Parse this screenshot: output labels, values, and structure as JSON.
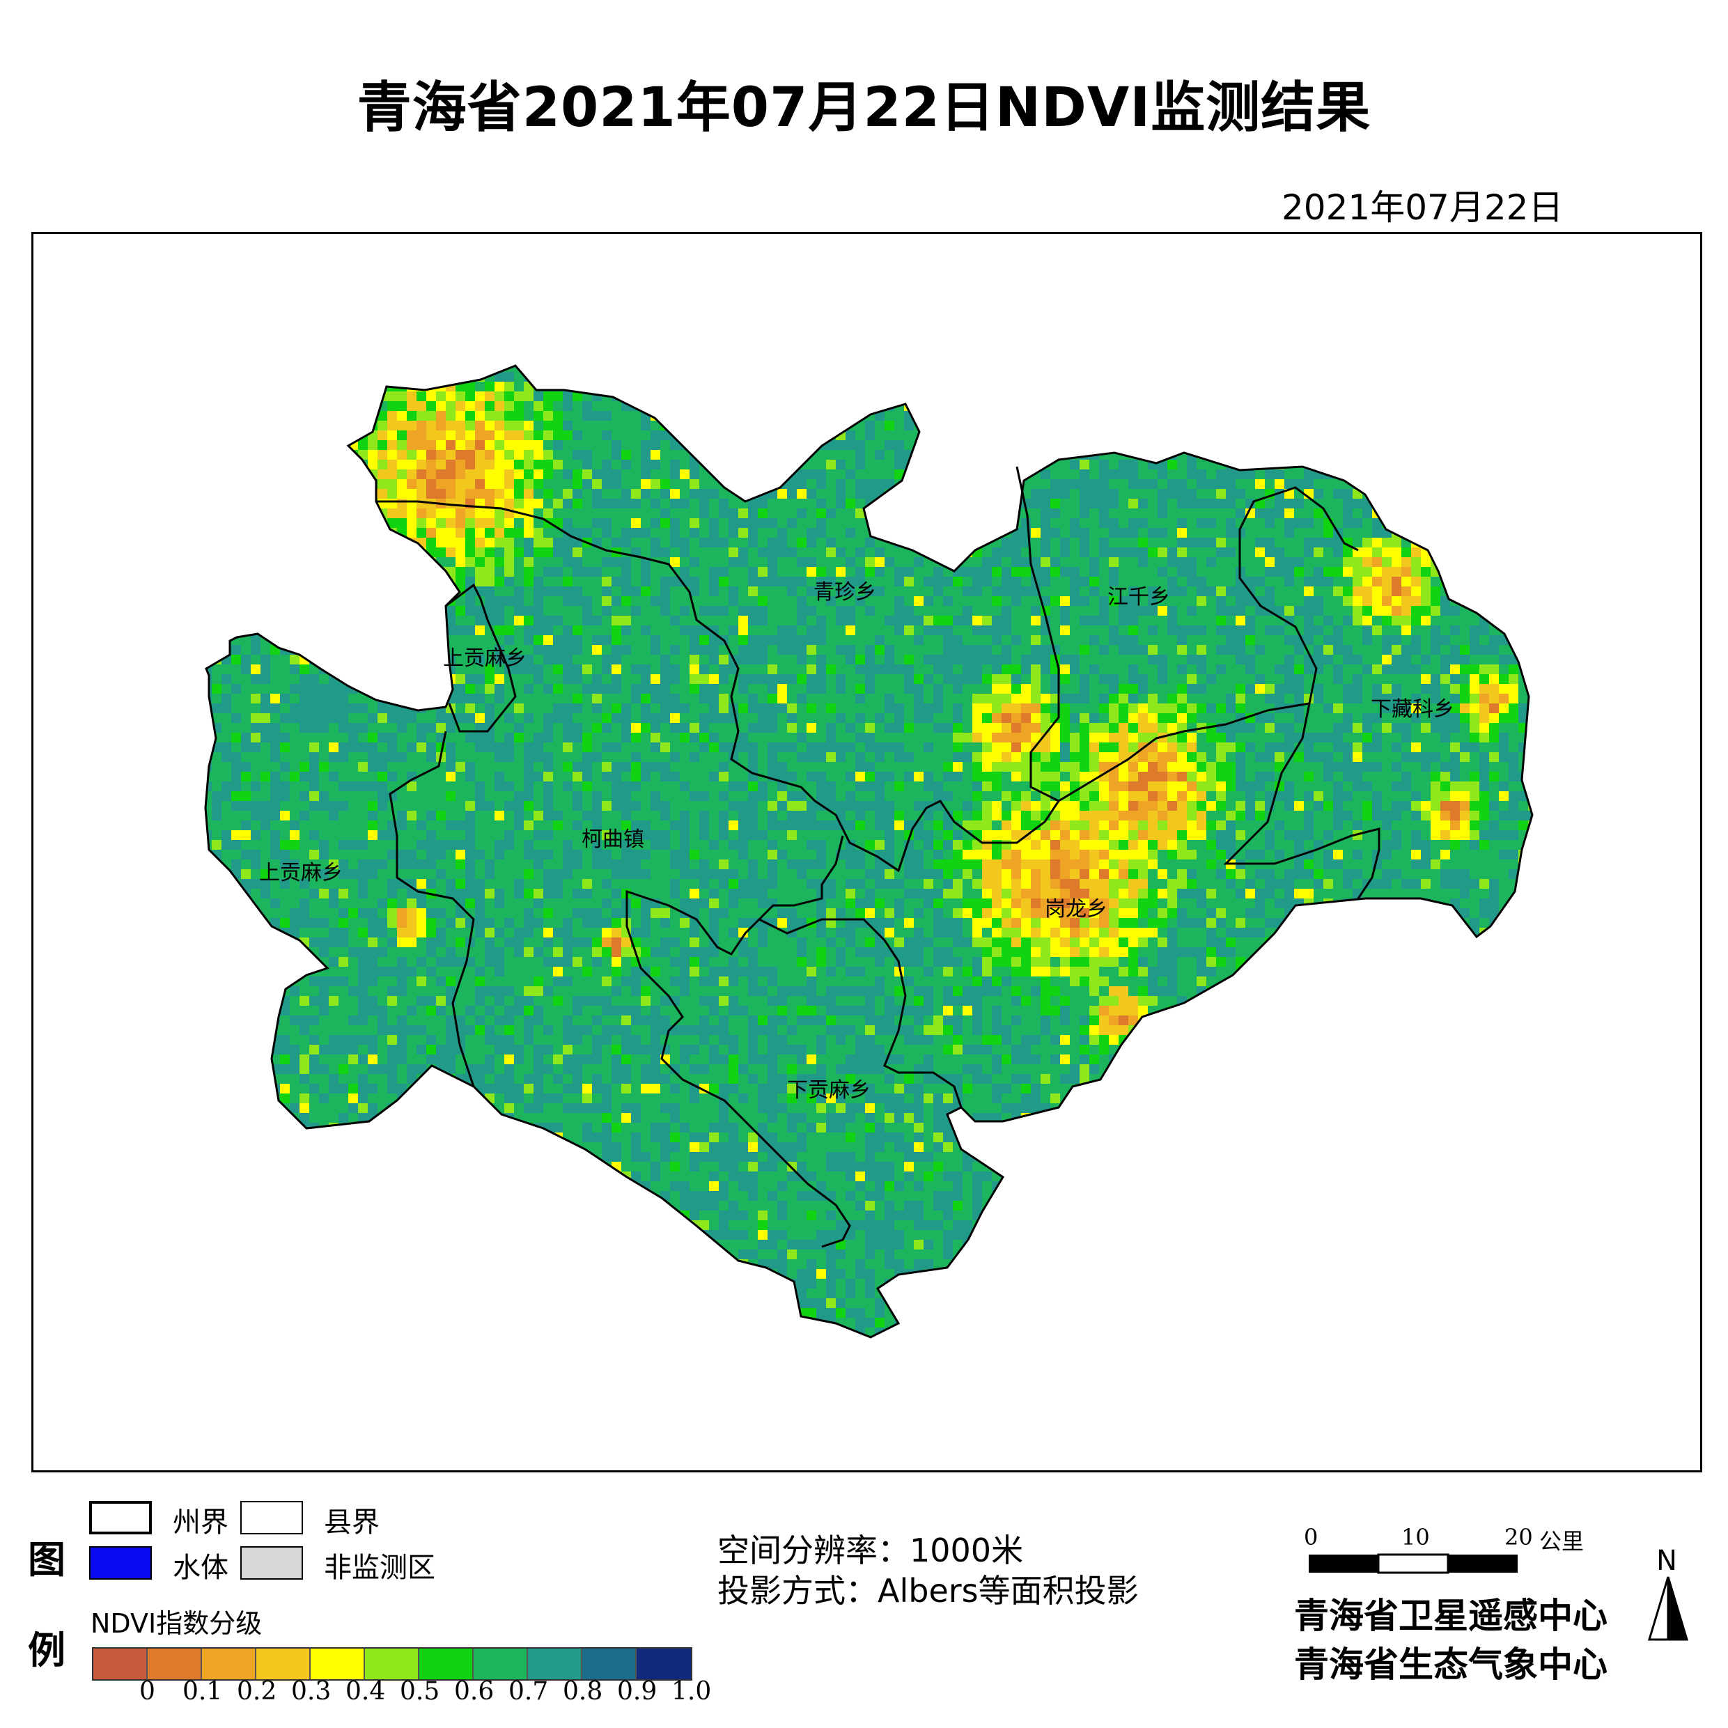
{
  "header": {
    "title": "青海省2021年07月22日NDVI监测结果",
    "date": "2021年07月22日"
  },
  "map": {
    "township_labels": [
      {
        "id": "qingzhen",
        "name": "青珍乡"
      },
      {
        "id": "jiangqian",
        "name": "江千乡"
      },
      {
        "id": "shanggongma-n",
        "name": "上贡麻乡"
      },
      {
        "id": "xiazangke",
        "name": "下藏科乡"
      },
      {
        "id": "kequ",
        "name": "柯曲镇"
      },
      {
        "id": "shanggongma-w",
        "name": "上贡麻乡"
      },
      {
        "id": "ganglong",
        "name": "岗龙乡"
      },
      {
        "id": "xiagongma",
        "name": "下贡麻乡"
      }
    ]
  },
  "legend": {
    "title_chars": [
      "图",
      "例"
    ],
    "items": [
      {
        "id": "prefecture",
        "label": "州界",
        "style": "thick-outline"
      },
      {
        "id": "county",
        "label": "县界",
        "style": "thin-outline"
      },
      {
        "id": "water",
        "label": "水体",
        "color": "#0a0af0"
      },
      {
        "id": "non-monitored",
        "label": "非监测区",
        "color": "#d8d8d8"
      }
    ],
    "ndvi_title": "NDVI指数分级",
    "ndvi_classes": [
      {
        "range": "0-0.1",
        "color": "#c75a3d"
      },
      {
        "range": "0.1-0.2",
        "color": "#dd7a2c"
      },
      {
        "range": "0.2-0.3",
        "color": "#eea425"
      },
      {
        "range": "0.3-0.4",
        "color": "#f2c81e"
      },
      {
        "range": "0.4-0.5",
        "color": "#ffff00"
      },
      {
        "range": "0.5-0.6",
        "color": "#8fe81c"
      },
      {
        "range": "0.6-0.7",
        "color": "#11d311"
      },
      {
        "range": "0.7-0.8",
        "color": "#1cb45c"
      },
      {
        "range": "0.8-0.9",
        "color": "#229a8a"
      },
      {
        "range": "0.9-1.0",
        "color": "#1b6b8a"
      },
      {
        "range": ">1.0",
        "color": "#12287a"
      }
    ],
    "ticks": [
      "0",
      "0.1",
      "0.2",
      "0.3",
      "0.4",
      "0.5",
      "0.6",
      "0.7",
      "0.8",
      "0.9",
      "1.0"
    ]
  },
  "info": {
    "resolution": "空间分辨率：1000米",
    "projection": "投影方式：Albers等面积投影"
  },
  "scale_bar": {
    "labels": [
      "0",
      "10",
      "20"
    ],
    "unit": "公里"
  },
  "north_arrow": {
    "label": "N"
  },
  "organizations": [
    "青海省卫星遥感中心",
    "青海省生态气象中心"
  ]
}
